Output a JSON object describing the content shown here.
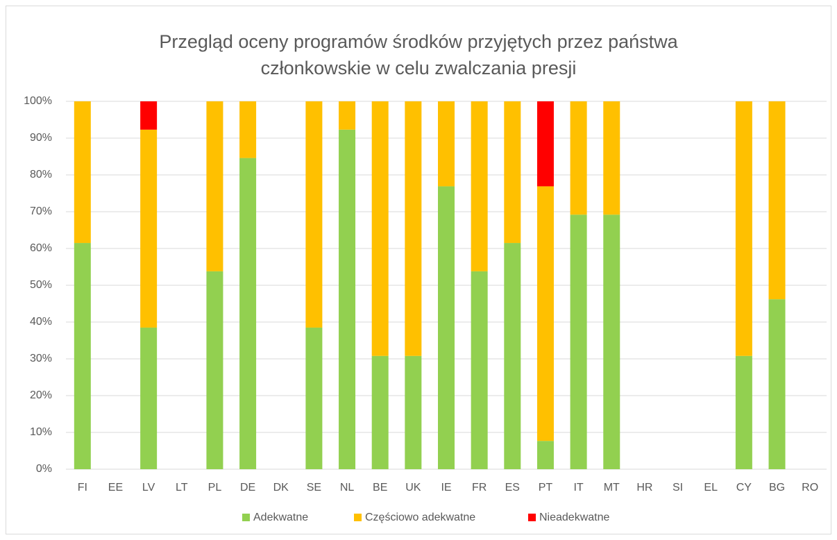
{
  "chart_data": {
    "type": "stacked_bar",
    "title": "Przegląd oceny programów środków przyjętych przez państwa członkowskie w celu zwalczania presji",
    "categories": [
      "FI",
      "EE",
      "LV",
      "LT",
      "PL",
      "DE",
      "DK",
      "SE",
      "NL",
      "BE",
      "UK",
      "IE",
      "FR",
      "ES",
      "PT",
      "IT",
      "MT",
      "HR",
      "SI",
      "EL",
      "CY",
      "BG",
      "RO"
    ],
    "series": [
      {
        "name": "Adekwatne",
        "color": "#92d050",
        "values": [
          61.5,
          null,
          38.5,
          null,
          53.8,
          84.6,
          null,
          38.5,
          92.3,
          30.8,
          30.8,
          76.9,
          53.8,
          61.5,
          7.7,
          69.2,
          69.2,
          null,
          null,
          null,
          30.8,
          46.2,
          null
        ]
      },
      {
        "name": "Częściowo adekwatne",
        "color": "#ffc000",
        "values": [
          38.5,
          null,
          53.8,
          null,
          46.2,
          15.4,
          null,
          61.5,
          7.7,
          69.2,
          69.2,
          23.1,
          46.2,
          38.5,
          69.2,
          30.8,
          30.8,
          null,
          null,
          null,
          69.2,
          53.8,
          null
        ]
      },
      {
        "name": "Nieadekwatne",
        "color": "#ff0000",
        "values": [
          null,
          null,
          7.7,
          null,
          null,
          null,
          null,
          null,
          null,
          null,
          null,
          null,
          null,
          null,
          23.1,
          null,
          null,
          null,
          null,
          null,
          null,
          null,
          null
        ]
      }
    ],
    "ylim": [
      0,
      100
    ],
    "yticks": [
      {
        "value": 0,
        "label": "0%"
      },
      {
        "value": 10,
        "label": "10%"
      },
      {
        "value": 20,
        "label": "20%"
      },
      {
        "value": 30,
        "label": "30%"
      },
      {
        "value": 40,
        "label": "40%"
      },
      {
        "value": 50,
        "label": "50%"
      },
      {
        "value": 60,
        "label": "60%"
      },
      {
        "value": 70,
        "label": "70%"
      },
      {
        "value": 80,
        "label": "80%"
      },
      {
        "value": 90,
        "label": "90%"
      },
      {
        "value": 100,
        "label": "100%"
      }
    ],
    "grid": true,
    "legend": "bottom"
  }
}
